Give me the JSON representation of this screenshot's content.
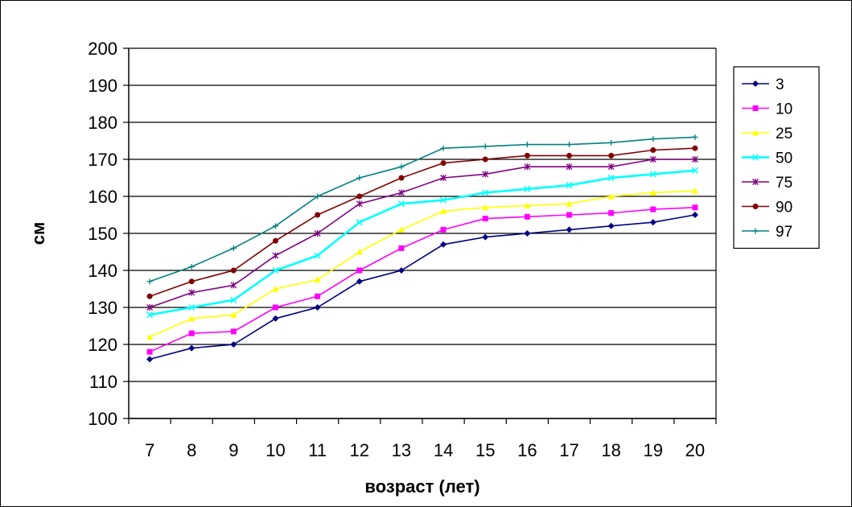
{
  "chart_data": {
    "type": "line",
    "title": "",
    "xlabel": "возраст (лет)",
    "ylabel": "см",
    "categories": [
      "7",
      "8",
      "9",
      "10",
      "11",
      "12",
      "13",
      "14",
      "15",
      "16",
      "17",
      "18",
      "19",
      "20"
    ],
    "ylim": [
      100,
      200
    ],
    "yticks": [
      100,
      110,
      120,
      130,
      140,
      150,
      160,
      170,
      180,
      190,
      200
    ],
    "grid": "horizontal",
    "legend": "right",
    "series": [
      {
        "name": "3",
        "color": "#000080",
        "marker": "diamond",
        "values": [
          116,
          119,
          120,
          127,
          130,
          137,
          140,
          147,
          149,
          150,
          151,
          152,
          153,
          155
        ]
      },
      {
        "name": "10",
        "color": "#ff00ff",
        "marker": "square",
        "values": [
          118,
          123,
          123.5,
          130,
          133,
          140,
          146,
          151,
          154,
          154.5,
          155,
          155.5,
          156.5,
          157
        ]
      },
      {
        "name": "25",
        "color": "#ffff00",
        "marker": "triangle",
        "values": [
          122,
          127,
          128,
          135,
          137.5,
          145,
          151,
          156,
          157,
          157.5,
          158,
          160,
          161,
          161.5
        ]
      },
      {
        "name": "50",
        "color": "#00ffff",
        "marker": "x",
        "values": [
          128,
          130,
          132,
          140,
          144,
          153,
          158,
          159,
          161,
          162,
          163,
          165,
          166,
          167
        ]
      },
      {
        "name": "75",
        "color": "#800080",
        "marker": "star",
        "values": [
          130,
          134,
          136,
          144,
          150,
          158,
          161,
          165,
          166,
          168,
          168,
          168,
          170,
          170
        ]
      },
      {
        "name": "90",
        "color": "#800000",
        "marker": "circle",
        "values": [
          133,
          137,
          140,
          148,
          155,
          160,
          165,
          169,
          170,
          171,
          171,
          171,
          172.5,
          173
        ]
      },
      {
        "name": "97",
        "color": "#008080",
        "marker": "plus",
        "values": [
          137,
          141,
          146,
          152,
          160,
          165,
          168,
          173,
          173.5,
          174,
          174,
          174.5,
          175.5,
          176
        ]
      }
    ]
  }
}
